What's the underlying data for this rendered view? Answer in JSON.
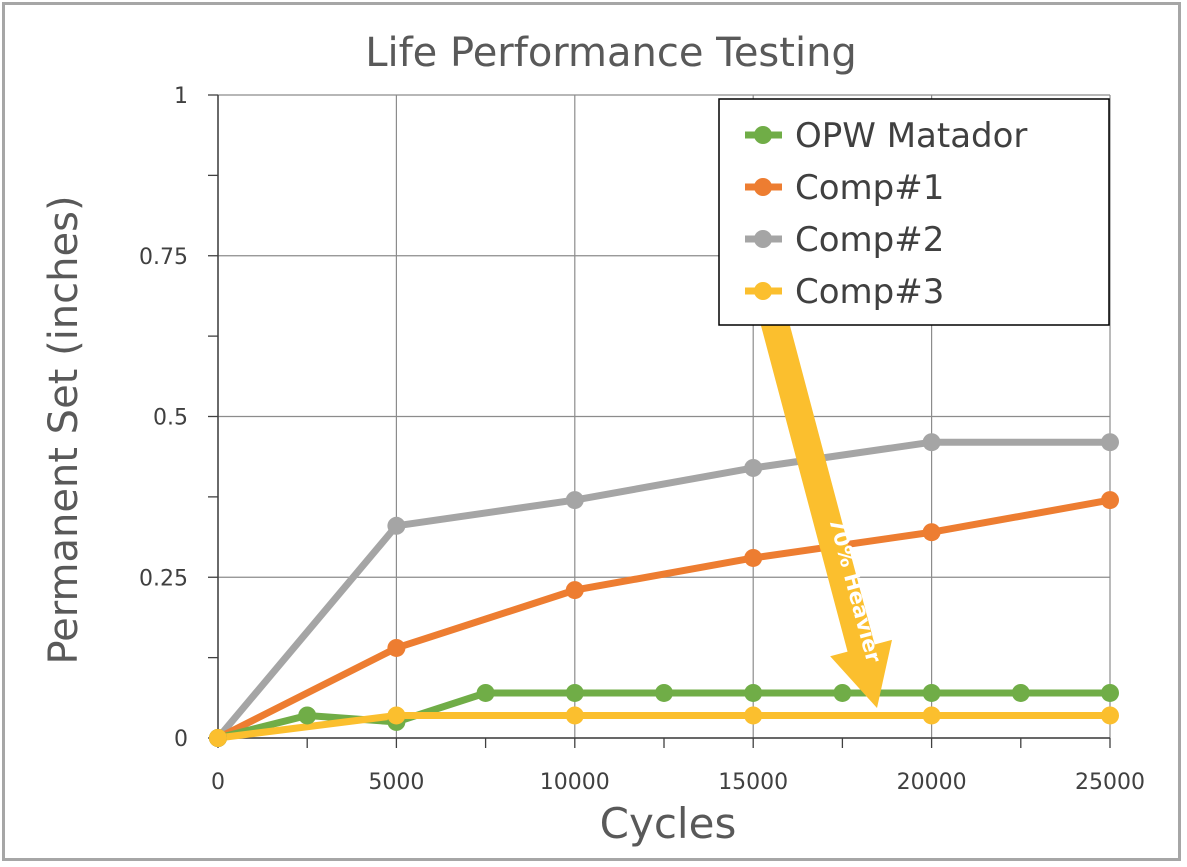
{
  "chart_data": {
    "type": "line",
    "title": "Life Performance Testing",
    "xlabel": "Cycles",
    "ylabel": "Permanent Set (inches)",
    "xlim": [
      0,
      25000
    ],
    "ylim": [
      0,
      1
    ],
    "x_ticks": [
      "0",
      "5000",
      "10000",
      "15000",
      "20000",
      "25000"
    ],
    "y_ticks": [
      "0",
      "0.25",
      "0.5",
      "0.75",
      "1"
    ],
    "grid": true,
    "legend_position": "top-right",
    "series": [
      {
        "name": "OPW Matador",
        "color": "#70ad47",
        "x": [
          0,
          2500,
          5000,
          7500,
          10000,
          12500,
          15000,
          17500,
          20000,
          22500,
          25000
        ],
        "y": [
          0,
          0.035,
          0.025,
          0.07,
          0.07,
          0.07,
          0.07,
          0.07,
          0.07,
          0.07,
          0.07
        ]
      },
      {
        "name": "Comp#1",
        "color": "#ed7d31",
        "x": [
          0,
          5000,
          10000,
          15000,
          20000,
          25000
        ],
        "y": [
          0,
          0.14,
          0.23,
          0.28,
          0.32,
          0.37
        ]
      },
      {
        "name": "Comp#2",
        "color": "#a5a5a5",
        "x": [
          0,
          5000,
          10000,
          15000,
          20000,
          25000
        ],
        "y": [
          0,
          0.33,
          0.37,
          0.42,
          0.46,
          0.46
        ]
      },
      {
        "name": "Comp#3",
        "color": "#fbbf2e",
        "x": [
          0,
          5000,
          10000,
          15000,
          20000,
          25000
        ],
        "y": [
          0,
          0.035,
          0.035,
          0.035,
          0.035,
          0.035
        ]
      }
    ],
    "annotation": {
      "text": "70% Heavier",
      "color": "#fbbf2e"
    }
  }
}
